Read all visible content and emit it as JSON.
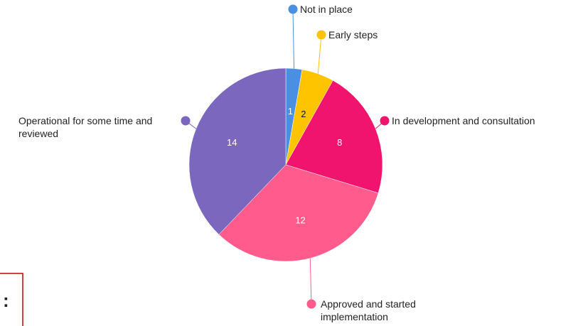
{
  "chart_data": {
    "type": "pie",
    "categories": [
      "Not in place",
      "Early steps",
      "In development and consultation",
      "Approved and started implementation",
      "Operational for some time and reviewed"
    ],
    "values": [
      1,
      2,
      8,
      12,
      14
    ],
    "colors": [
      "#4a90e2",
      "#ffc400",
      "#f0146e",
      "#ff5c8d",
      "#7b68be"
    ]
  },
  "fragment": ":"
}
